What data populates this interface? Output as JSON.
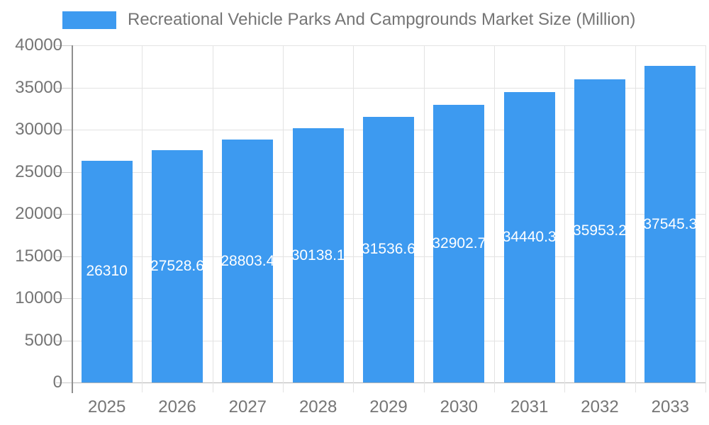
{
  "legend": {
    "label": "Recreational Vehicle Parks And Campgrounds Market Size (Million)"
  },
  "chart_data": {
    "type": "bar",
    "title": "Recreational Vehicle Parks And Campgrounds Market Size (Million)",
    "xlabel": "",
    "ylabel": "",
    "categories": [
      "2025",
      "2026",
      "2027",
      "2028",
      "2029",
      "2030",
      "2031",
      "2032",
      "2033"
    ],
    "values": [
      26310,
      27528.6,
      28803.4,
      30138.1,
      31536.6,
      32902.7,
      34440.3,
      35953.2,
      37545.3
    ],
    "value_labels": [
      "26310",
      "27528.6",
      "28803.4",
      "30138.1",
      "31536.6",
      "32902.7",
      "34440.3",
      "35953.2",
      "37545.3"
    ],
    "ylim": [
      0,
      40000
    ],
    "yticks": [
      0,
      5000,
      10000,
      15000,
      20000,
      25000,
      30000,
      35000,
      40000
    ],
    "grid": true,
    "legend_position": "top",
    "colors": {
      "bar": "#3D9AF0",
      "bar_label": "#ffffff",
      "axis_text": "#757575",
      "grid_line": "#e3e3e3",
      "axis_line": "#8f8f8f",
      "zero_line": "#b5b5b5",
      "tick": "#c9c9c9"
    }
  }
}
